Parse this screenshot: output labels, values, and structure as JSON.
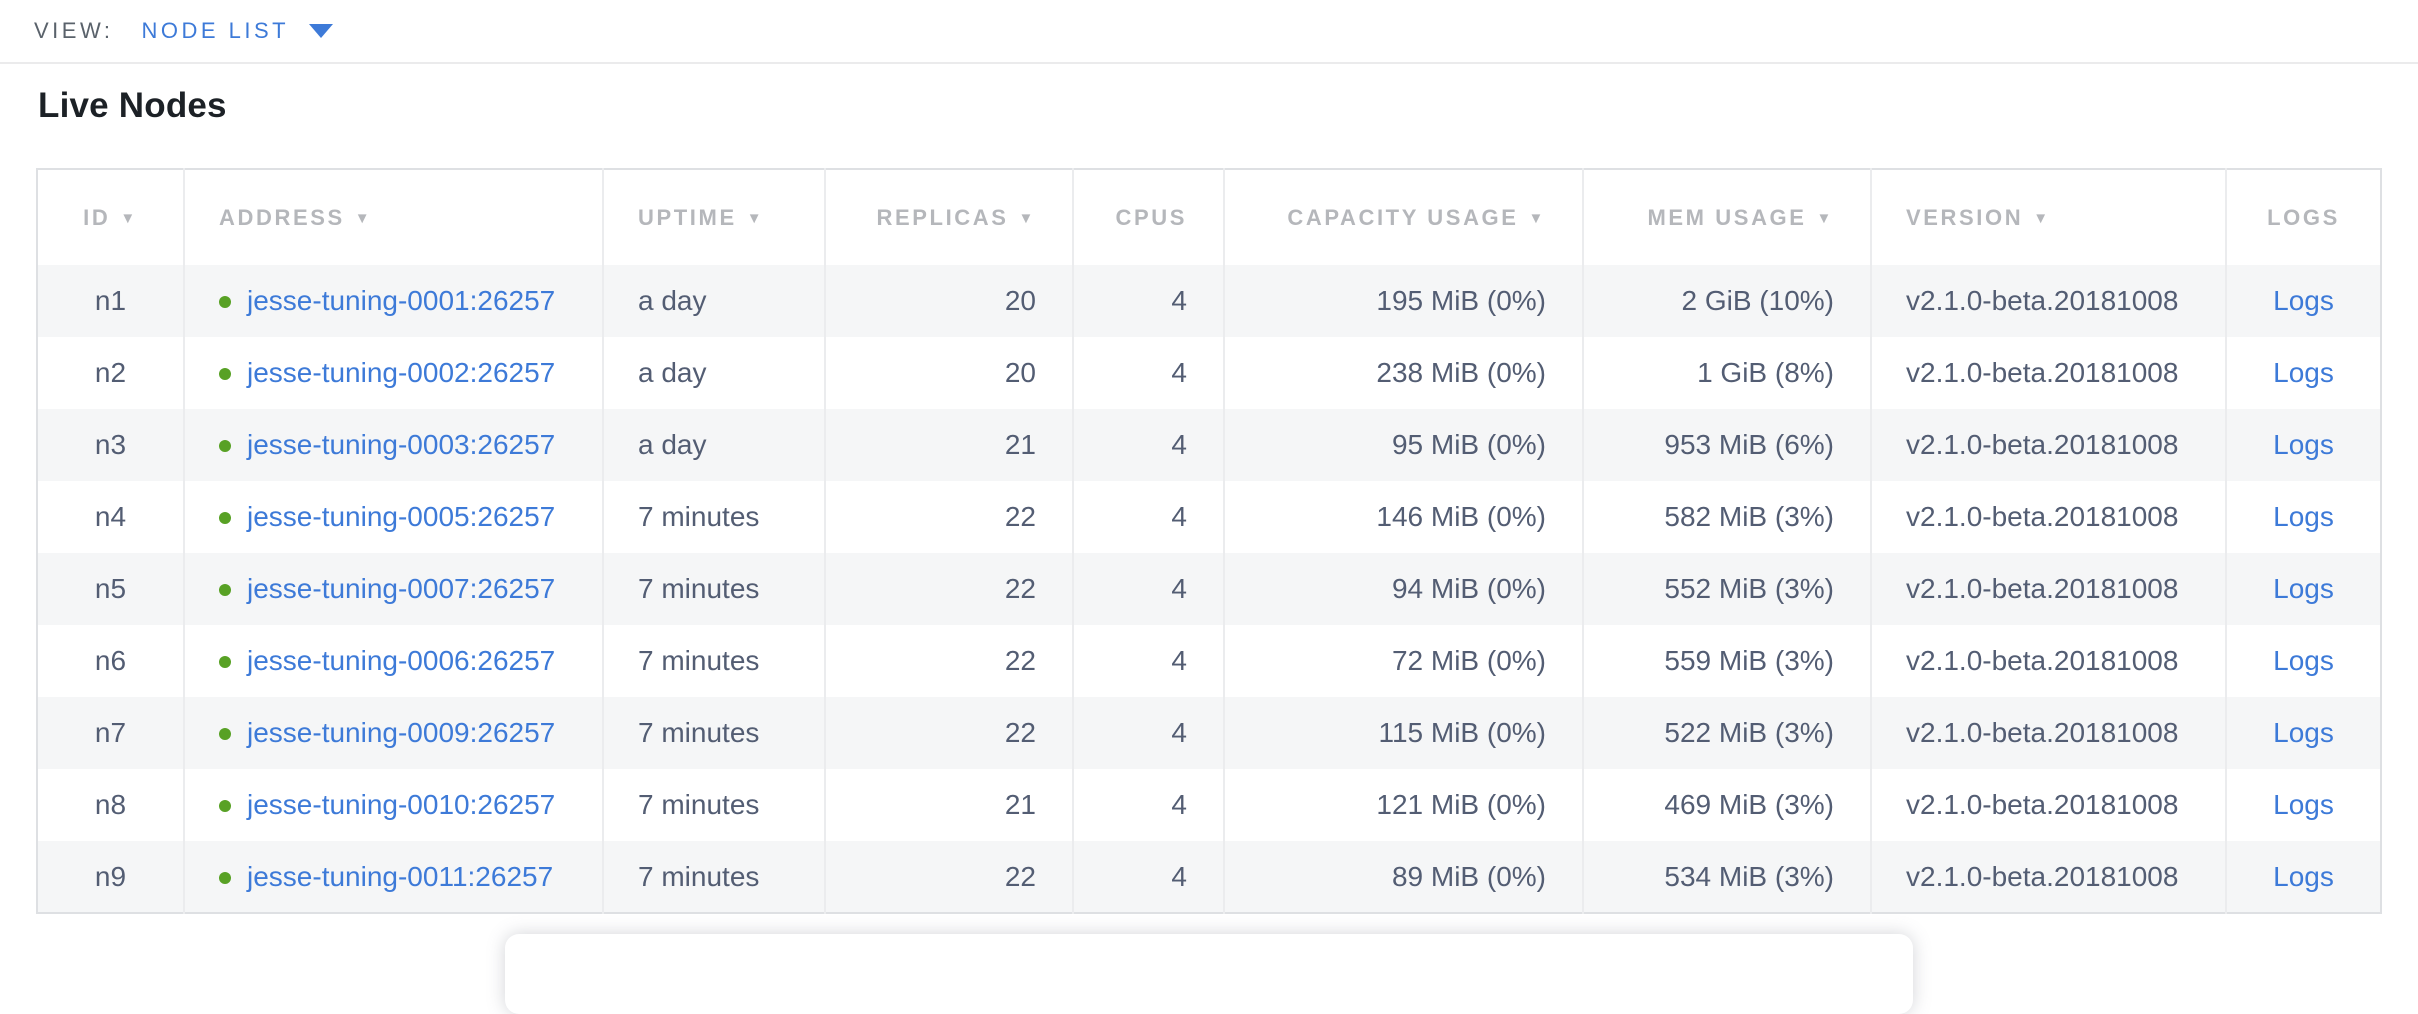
{
  "view_bar": {
    "label": "VIEW:",
    "selected": "NODE LIST"
  },
  "title": "Live Nodes",
  "table": {
    "columns": [
      {
        "key": "id",
        "label": "ID",
        "sort_arrow": true
      },
      {
        "key": "address",
        "label": "ADDRESS",
        "sort_arrow": true
      },
      {
        "key": "uptime",
        "label": "UPTIME",
        "sort_arrow": true
      },
      {
        "key": "replicas",
        "label": "REPLICAS",
        "sort_arrow": true
      },
      {
        "key": "cpus",
        "label": "CPUS",
        "sort_arrow": false
      },
      {
        "key": "capacity",
        "label": "CAPACITY USAGE",
        "sort_arrow": true
      },
      {
        "key": "mem",
        "label": "MEM USAGE",
        "sort_arrow": true
      },
      {
        "key": "version",
        "label": "VERSION",
        "sort_arrow": true
      },
      {
        "key": "logs",
        "label": "LOGS",
        "sort_arrow": false
      }
    ],
    "rows": [
      {
        "id": "n1",
        "address": "jesse-tuning-0001:26257",
        "uptime": "a day",
        "replicas": "20",
        "cpus": "4",
        "capacity": "195 MiB (0%)",
        "mem": "2 GiB (10%)",
        "version": "v2.1.0-beta.20181008",
        "logs": "Logs"
      },
      {
        "id": "n2",
        "address": "jesse-tuning-0002:26257",
        "uptime": "a day",
        "replicas": "20",
        "cpus": "4",
        "capacity": "238 MiB (0%)",
        "mem": "1 GiB (8%)",
        "version": "v2.1.0-beta.20181008",
        "logs": "Logs"
      },
      {
        "id": "n3",
        "address": "jesse-tuning-0003:26257",
        "uptime": "a day",
        "replicas": "21",
        "cpus": "4",
        "capacity": "95 MiB (0%)",
        "mem": "953 MiB (6%)",
        "version": "v2.1.0-beta.20181008",
        "logs": "Logs"
      },
      {
        "id": "n4",
        "address": "jesse-tuning-0005:26257",
        "uptime": "7 minutes",
        "replicas": "22",
        "cpus": "4",
        "capacity": "146 MiB (0%)",
        "mem": "582 MiB (3%)",
        "version": "v2.1.0-beta.20181008",
        "logs": "Logs"
      },
      {
        "id": "n5",
        "address": "jesse-tuning-0007:26257",
        "uptime": "7 minutes",
        "replicas": "22",
        "cpus": "4",
        "capacity": "94 MiB (0%)",
        "mem": "552 MiB (3%)",
        "version": "v2.1.0-beta.20181008",
        "logs": "Logs"
      },
      {
        "id": "n6",
        "address": "jesse-tuning-0006:26257",
        "uptime": "7 minutes",
        "replicas": "22",
        "cpus": "4",
        "capacity": "72 MiB (0%)",
        "mem": "559 MiB (3%)",
        "version": "v2.1.0-beta.20181008",
        "logs": "Logs"
      },
      {
        "id": "n7",
        "address": "jesse-tuning-0009:26257",
        "uptime": "7 minutes",
        "replicas": "22",
        "cpus": "4",
        "capacity": "115 MiB (0%)",
        "mem": "522 MiB (3%)",
        "version": "v2.1.0-beta.20181008",
        "logs": "Logs"
      },
      {
        "id": "n8",
        "address": "jesse-tuning-0010:26257",
        "uptime": "7 minutes",
        "replicas": "21",
        "cpus": "4",
        "capacity": "121 MiB (0%)",
        "mem": "469 MiB (3%)",
        "version": "v2.1.0-beta.20181008",
        "logs": "Logs"
      },
      {
        "id": "n9",
        "address": "jesse-tuning-0011:26257",
        "uptime": "7 minutes",
        "replicas": "22",
        "cpus": "4",
        "capacity": "89 MiB (0%)",
        "mem": "534 MiB (3%)",
        "version": "v2.1.0-beta.20181008",
        "logs": "Logs"
      }
    ]
  },
  "colors": {
    "accent_blue": "#3d7ad8",
    "status_green": "#58a125",
    "header_gray": "#b5b7bb",
    "text_slate": "#535d73"
  }
}
